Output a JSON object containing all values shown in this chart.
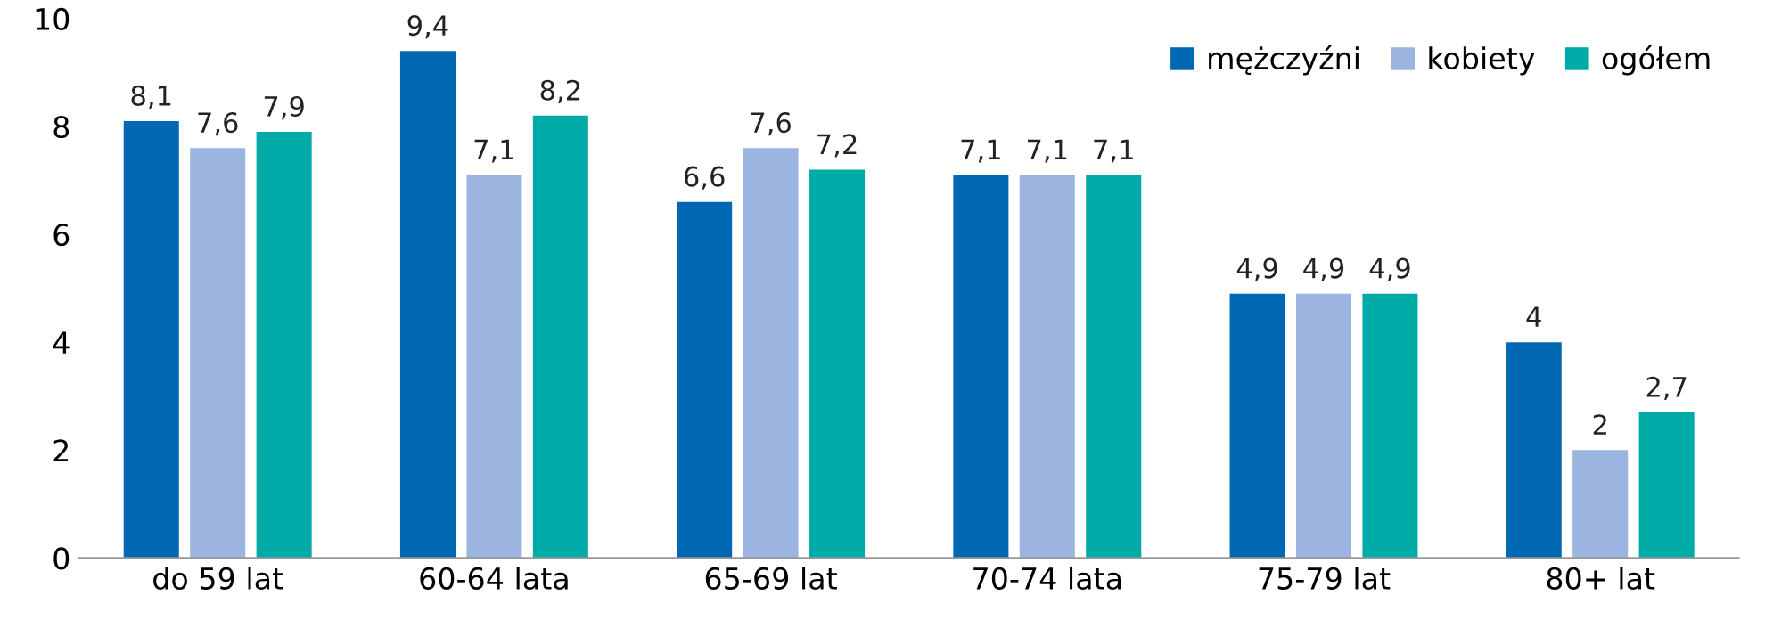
{
  "chart_data": {
    "type": "bar",
    "categories": [
      "do 59 lat",
      "60-64 lata",
      "65-69 lat",
      "70-74 lata",
      "75-79 lat",
      "80+ lat"
    ],
    "series": [
      {
        "name": "mężczyźni",
        "color": "#0068b3",
        "values": [
          8.1,
          9.4,
          6.6,
          7.1,
          4.9,
          4
        ],
        "value_labels": [
          "8,1",
          "9,4",
          "6,6",
          "7,1",
          "4,9",
          "4"
        ]
      },
      {
        "name": "kobiety",
        "color": "#9bb4e0",
        "values": [
          7.6,
          7.1,
          7.6,
          7.1,
          4.9,
          2
        ],
        "value_labels": [
          "7,6",
          "7,1",
          "7,6",
          "7,1",
          "4,9",
          "2"
        ]
      },
      {
        "name": "ogółem",
        "color": "#00aaa6",
        "values": [
          7.9,
          8.2,
          7.2,
          7.1,
          4.9,
          2.7
        ],
        "value_labels": [
          "7,9",
          "8,2",
          "7,2",
          "7,1",
          "4,9",
          "2,7"
        ]
      }
    ],
    "ylim": [
      0,
      10
    ],
    "yticks": [
      0,
      2,
      4,
      6,
      8,
      10
    ],
    "grid": false,
    "legend": "top right"
  }
}
